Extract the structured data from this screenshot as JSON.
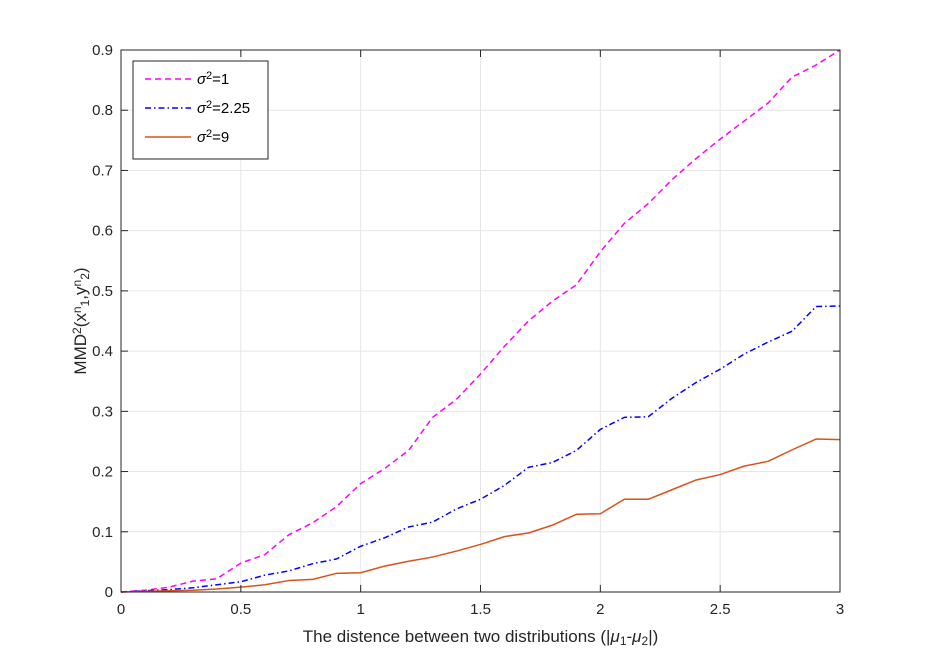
{
  "chart_data": {
    "type": "line",
    "xlabel": "The distence between two distributions (|μ1-μ2|)",
    "ylabel": "MMD2(xn1,yn2)",
    "xlim": [
      0,
      3
    ],
    "ylim": [
      0,
      0.9
    ],
    "x_ticks": [
      0,
      0.5,
      1,
      1.5,
      2,
      2.5,
      3
    ],
    "y_ticks": [
      0,
      0.1,
      0.2,
      0.3,
      0.4,
      0.5,
      0.6,
      0.7,
      0.8,
      0.9
    ],
    "x_tick_labels": [
      "0",
      "0.5",
      "1",
      "1.5",
      "2",
      "2.5",
      "3"
    ],
    "y_tick_labels": [
      "0",
      "0.1",
      "0.2",
      "0.3",
      "0.4",
      "0.5",
      "0.6",
      "0.7",
      "0.8",
      "0.9"
    ],
    "grid": true,
    "legend_position": "top-left",
    "x": [
      0,
      0.1,
      0.2,
      0.3,
      0.4,
      0.5,
      0.6,
      0.7,
      0.8,
      0.9,
      1.0,
      1.1,
      1.2,
      1.3,
      1.4,
      1.5,
      1.6,
      1.7,
      1.8,
      1.9,
      2.0,
      2.1,
      2.2,
      2.3,
      2.4,
      2.5,
      2.6,
      2.7,
      2.8,
      2.9,
      3.0
    ],
    "series": [
      {
        "name": "σ2=1",
        "color": "#ff00ff",
        "style": "dashed",
        "values": [
          0,
          0.003,
          0.008,
          0.018,
          0.022,
          0.048,
          0.062,
          0.095,
          0.115,
          0.142,
          0.18,
          0.205,
          0.235,
          0.29,
          0.32,
          0.362,
          0.408,
          0.45,
          0.483,
          0.51,
          0.565,
          0.612,
          0.645,
          0.685,
          0.72,
          0.752,
          0.782,
          0.812,
          0.855,
          0.875,
          0.9
        ]
      },
      {
        "name": "σ2=2.25",
        "color": "#0000ff",
        "style": "dashdot",
        "values": [
          0,
          0.002,
          0.004,
          0.007,
          0.012,
          0.017,
          0.028,
          0.035,
          0.047,
          0.055,
          0.076,
          0.09,
          0.108,
          0.116,
          0.138,
          0.154,
          0.177,
          0.207,
          0.215,
          0.235,
          0.27,
          0.29,
          0.291,
          0.322,
          0.348,
          0.37,
          0.395,
          0.415,
          0.433,
          0.474,
          0.475
        ]
      },
      {
        "name": "σ2=9",
        "color": "#d95319",
        "style": "solid",
        "values": [
          0,
          0.001,
          0.002,
          0.003,
          0.005,
          0.008,
          0.012,
          0.019,
          0.021,
          0.031,
          0.032,
          0.043,
          0.051,
          0.058,
          0.068,
          0.079,
          0.092,
          0.098,
          0.111,
          0.129,
          0.13,
          0.154,
          0.154,
          0.17,
          0.186,
          0.195,
          0.209,
          0.217,
          0.236,
          0.254,
          0.253
        ]
      }
    ]
  }
}
